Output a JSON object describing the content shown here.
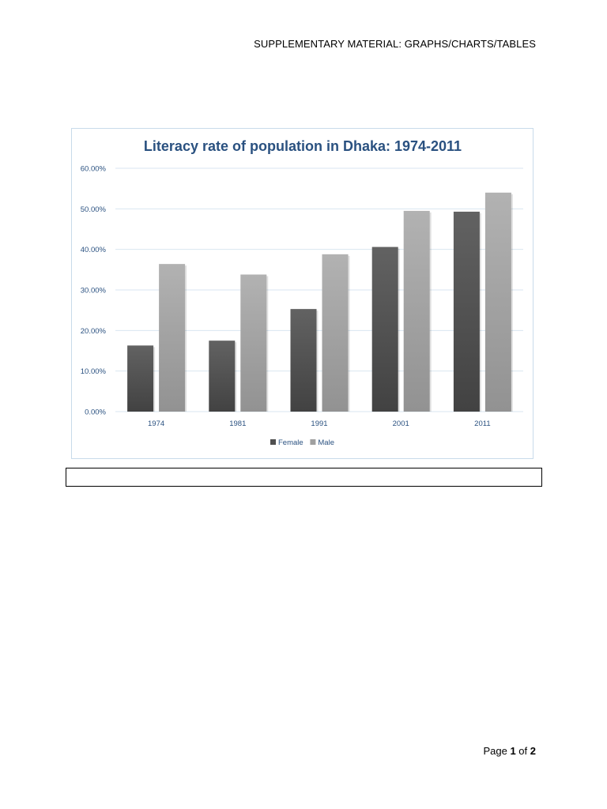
{
  "header": {
    "text": "SUPPLEMENTARY MATERIAL: GRAPHS/CHARTS/TABLES"
  },
  "footer": {
    "page_word": "Page",
    "current_page": "1",
    "of_word": "of",
    "total_pages": "2"
  },
  "caption": {
    "text": ""
  },
  "chart_data": {
    "type": "bar",
    "title": "Literacy rate of population in Dhaka: 1974-2011",
    "xlabel": "",
    "ylabel": "",
    "categories": [
      "1974",
      "1981",
      "1991",
      "2001",
      "2011"
    ],
    "series": [
      {
        "name": "Female",
        "values": [
          16.3,
          17.5,
          25.3,
          40.6,
          49.3
        ],
        "color": "#505050"
      },
      {
        "name": "Male",
        "values": [
          36.4,
          33.8,
          38.8,
          49.5,
          54.0
        ],
        "color": "#a0a0a0"
      }
    ],
    "ylim": [
      0,
      60
    ],
    "yticks": [
      {
        "value": 0,
        "label": "0.00%"
      },
      {
        "value": 10,
        "label": "10.00%"
      },
      {
        "value": 20,
        "label": "20.00%"
      },
      {
        "value": 30,
        "label": "30.00%"
      },
      {
        "value": 40,
        "label": "40.00%"
      },
      {
        "value": 50,
        "label": "50.00%"
      },
      {
        "value": 60,
        "label": "60.00%"
      }
    ],
    "grid": true,
    "legend_position": "bottom",
    "colors": {
      "grid": "#d9e6f0",
      "text": "#2a5180",
      "frame": "#c8dbea"
    }
  }
}
